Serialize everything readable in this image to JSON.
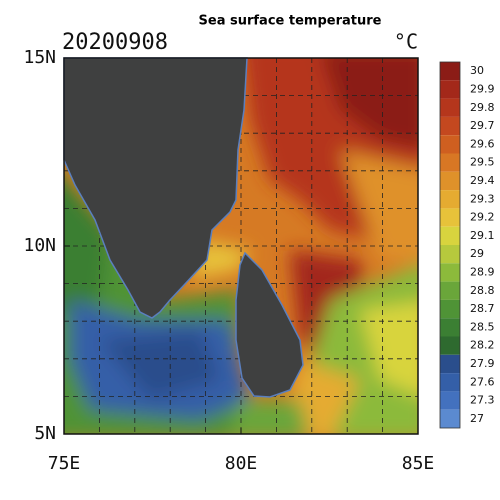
{
  "map": {
    "title": "Sea surface temperature",
    "date": "20200908",
    "unit": "°C",
    "lonlim": [
      75,
      85
    ],
    "latlim": [
      5,
      15
    ],
    "lon_ticks": [
      {
        "value": 75,
        "label": "75E"
      },
      {
        "value": 80,
        "label": "80E"
      },
      {
        "value": 85,
        "label": "85E"
      }
    ],
    "lat_ticks": [
      {
        "value": 15,
        "label": "15N"
      },
      {
        "value": 10,
        "label": "10N"
      },
      {
        "value": 5,
        "label": "5N"
      }
    ],
    "colorbar": {
      "levels": [
        30,
        29.9,
        29.8,
        29.7,
        29.6,
        29.5,
        29.4,
        29.3,
        29.2,
        29.1,
        29,
        28.9,
        28.8,
        28.7,
        28.5,
        28.2,
        27.9,
        27.6,
        27.3,
        27
      ],
      "colors": [
        "#8b1c16",
        "#a3281a",
        "#b5361c",
        "#c4481f",
        "#cf5f20",
        "#d87724",
        "#df912a",
        "#e5ab31",
        "#e7c23a",
        "#d8d43e",
        "#b6c93d",
        "#8cba3b",
        "#6aa63a",
        "#4f9336",
        "#3b7f33",
        "#2e6a2f",
        "#2a4e8c",
        "#345fa8",
        "#4371be",
        "#5b8ad0"
      ]
    }
  }
}
